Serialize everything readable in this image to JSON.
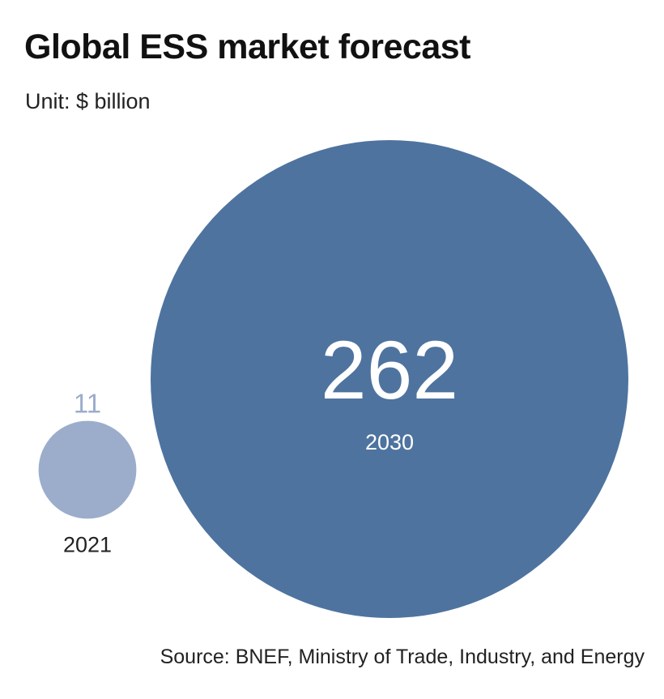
{
  "title": "Global ESS market forecast",
  "subtitle": "Unit: $ billion",
  "source": "Source: BNEF, Ministry of Trade, Industry, and Energy",
  "colors": {
    "bubble_2030": "#4e739f",
    "bubble_2021": "#9badcb",
    "label_2021_value": "#9badcb",
    "label_2030": "#ffffff",
    "label_2021_year": "#222222"
  },
  "chart_data": {
    "type": "bubble",
    "title": "Global ESS market forecast",
    "subtitle": "Unit: $ billion",
    "unit": "$ billion",
    "categories": [
      "2021",
      "2030"
    ],
    "values": [
      11,
      262
    ],
    "points": [
      {
        "year": "2021",
        "value": 11,
        "value_label": "11"
      },
      {
        "year": "2030",
        "value": 262,
        "value_label": "262"
      }
    ]
  }
}
